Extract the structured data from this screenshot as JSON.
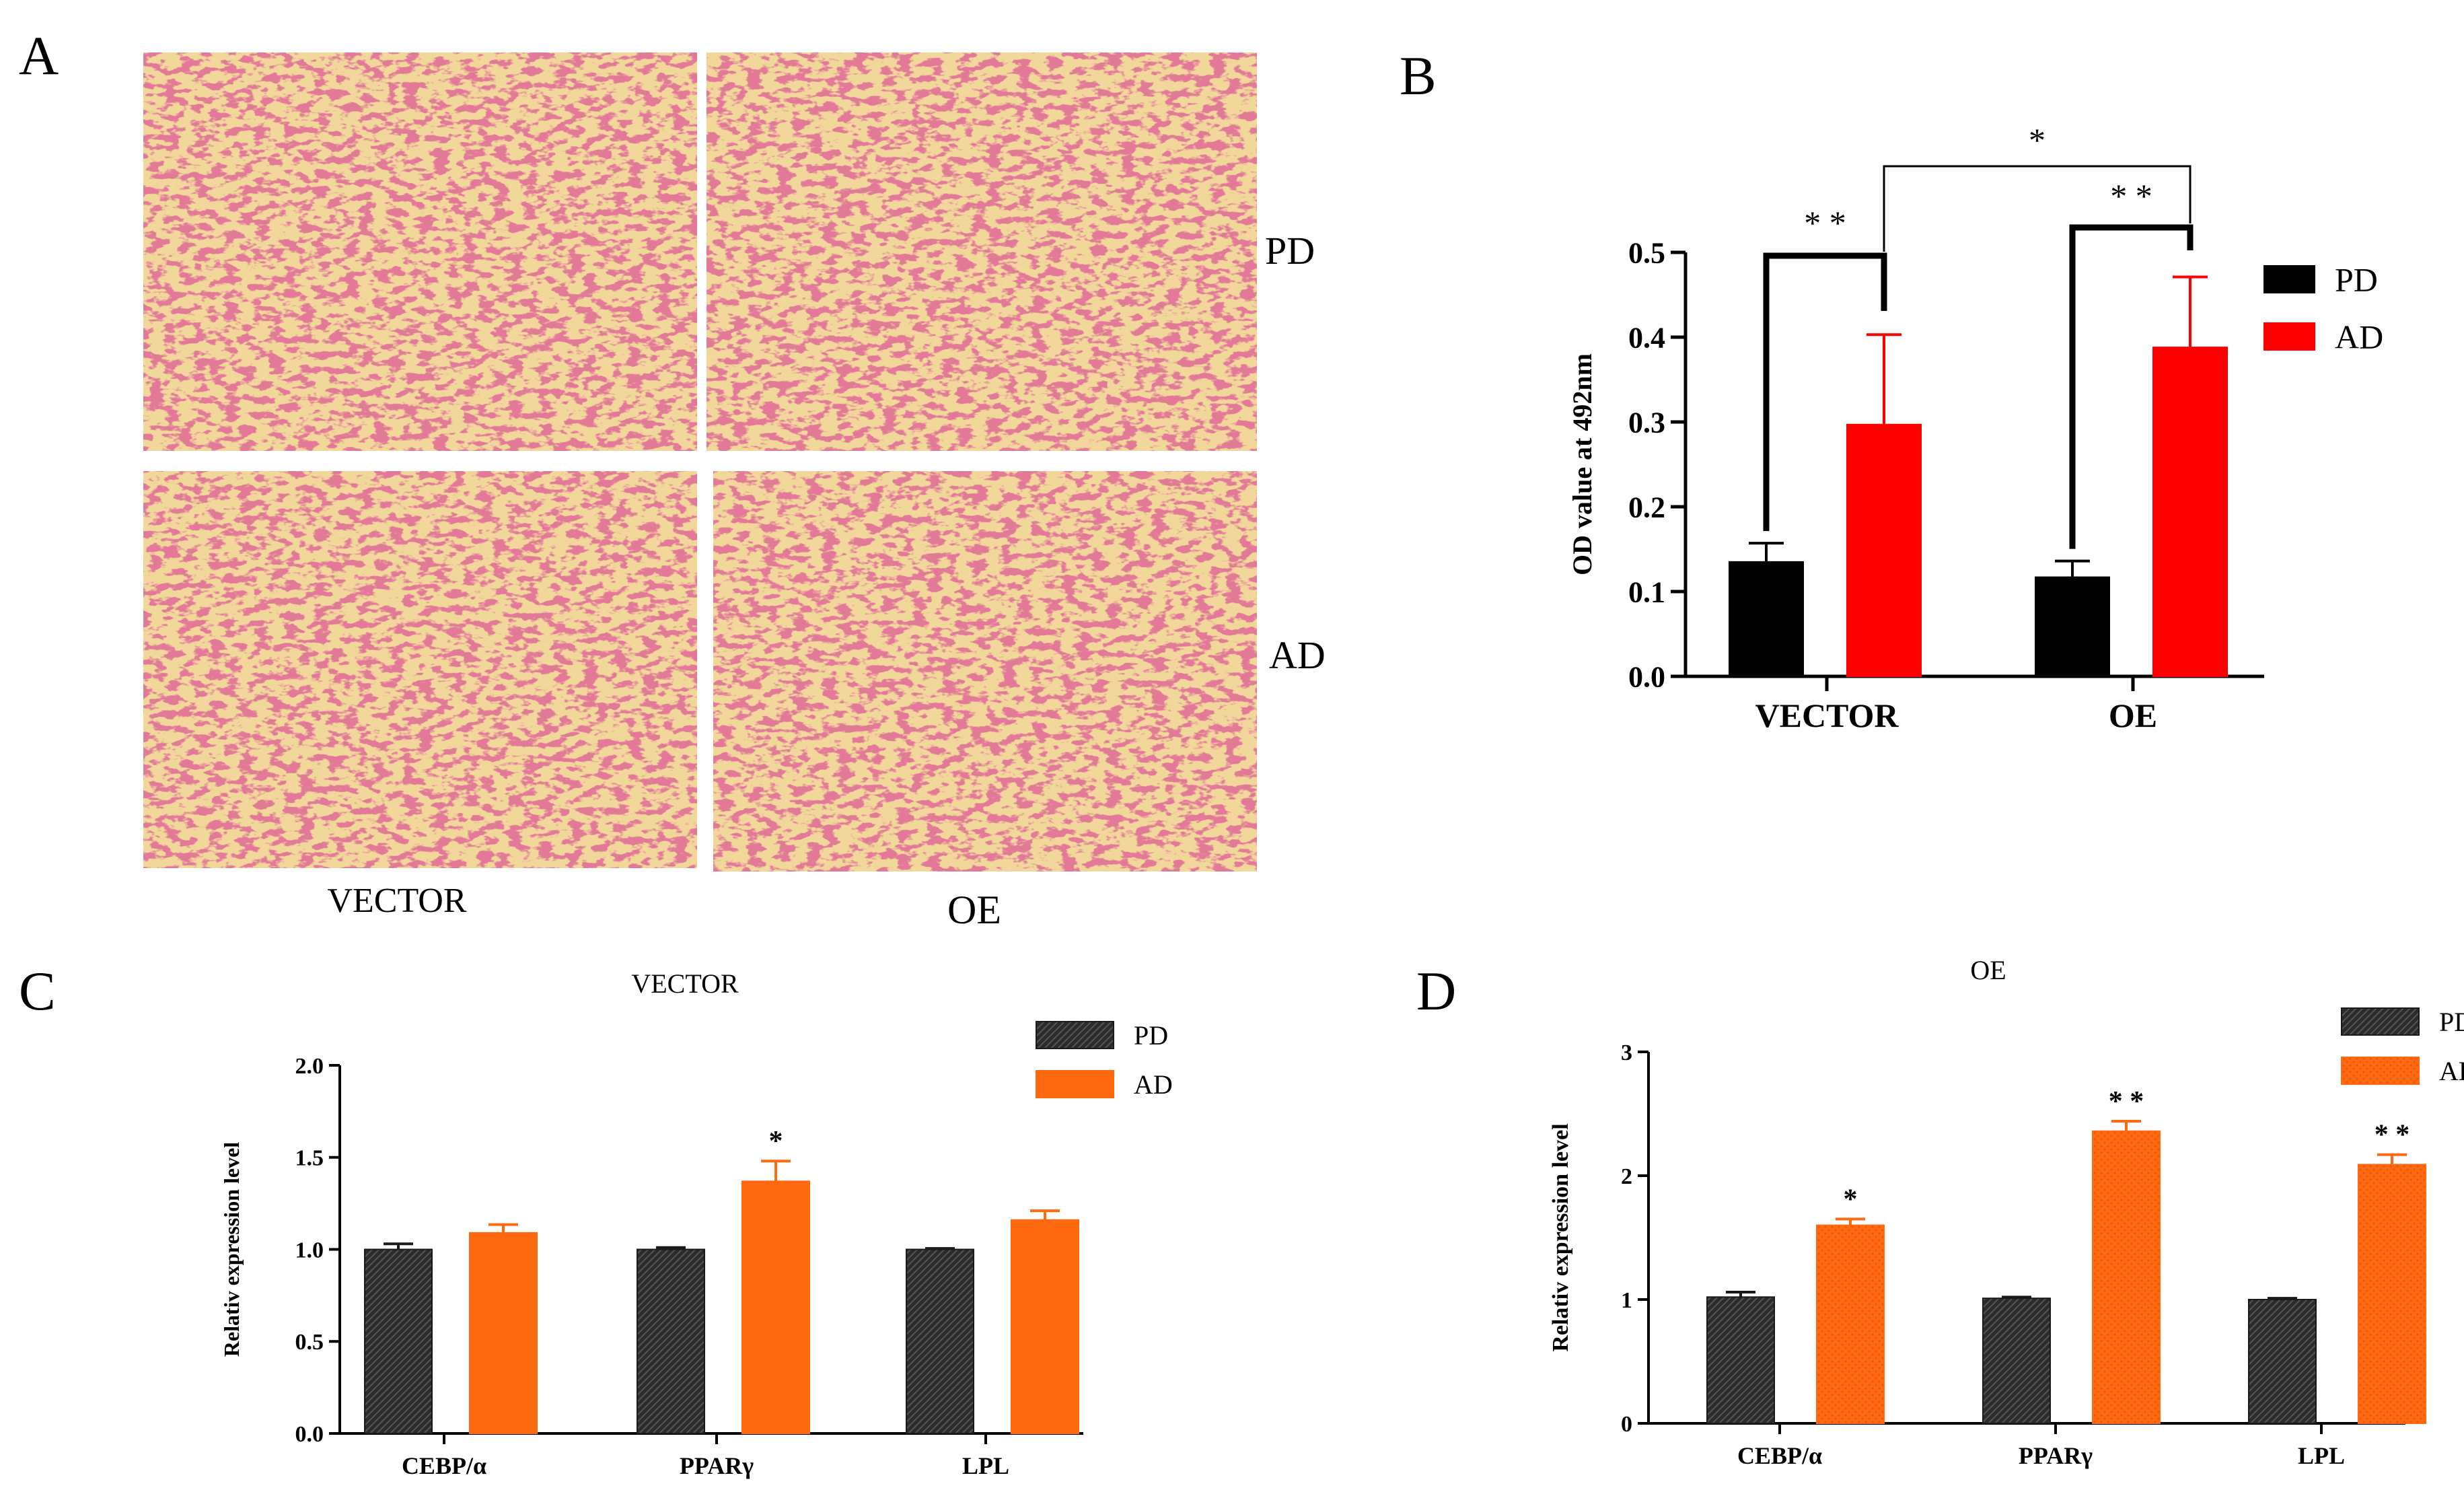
{
  "panels": {
    "A": {
      "label": "A",
      "row_labels": [
        "PD",
        "AD"
      ],
      "column_labels": [
        "VECTOR",
        "OE"
      ],
      "colors": {
        "background": "#f2d79b",
        "cells": "#c0304e"
      }
    },
    "B": {
      "label": "B"
    },
    "C": {
      "label": "C"
    },
    "D": {
      "label": "D"
    }
  },
  "chart_data": [
    {
      "id": "B",
      "type": "bar",
      "title": "",
      "categories": [
        "VECTOR",
        "OE"
      ],
      "series": [
        {
          "name": "PD",
          "values": [
            0.135,
            0.117
          ],
          "errors": [
            0.022,
            0.019
          ],
          "color": "#000000"
        },
        {
          "name": "AD",
          "values": [
            0.297,
            0.388
          ],
          "errors": [
            0.106,
            0.083
          ],
          "color": "#ff0000"
        }
      ],
      "ylabel": "OD value at 492nm",
      "xlabel": "",
      "ylim": [
        0,
        0.5
      ],
      "yticks": [
        0.0,
        0.1,
        0.2,
        0.3,
        0.4,
        0.5
      ],
      "ytick_labels": [
        "0.0",
        "0.1",
        "0.2",
        "0.3",
        "0.4",
        "0.5"
      ],
      "legend": {
        "position": "top-right",
        "entries": [
          "PD",
          "AD"
        ]
      },
      "significance": [
        {
          "label": "* *",
          "between": "VECTOR PD vs VECTOR AD"
        },
        {
          "label": "* *",
          "between": "OE PD vs OE AD"
        },
        {
          "label": "*",
          "between": "VECTOR AD vs OE AD"
        }
      ]
    },
    {
      "id": "C",
      "type": "bar",
      "title": "VECTOR",
      "categories": [
        "CEBP/α",
        "PPARγ",
        "LPL"
      ],
      "series": [
        {
          "name": "PD",
          "values": [
            1.0,
            1.0,
            1.0
          ],
          "errors": [
            0.03,
            0.01,
            0.005
          ],
          "color": "#2b2b2b"
        },
        {
          "name": "AD",
          "values": [
            1.09,
            1.37,
            1.16
          ],
          "errors": [
            0.045,
            0.11,
            0.05
          ],
          "color": "#ff6a10"
        }
      ],
      "annotations": [
        "",
        "*",
        ""
      ],
      "ylabel": "Relativ expression level",
      "xlabel": "",
      "ylim": [
        0,
        2.0
      ],
      "yticks": [
        0,
        0.5,
        1.0,
        1.5,
        2.0
      ],
      "ytick_labels": [
        "0.0",
        "0.5",
        "1.0",
        "1.5",
        "2.0"
      ],
      "legend": {
        "position": "top-right",
        "entries": [
          "PD",
          "AD"
        ]
      }
    },
    {
      "id": "D",
      "type": "bar",
      "title": "OE",
      "categories": [
        "CEBP/α",
        "PPARγ",
        "LPL"
      ],
      "series": [
        {
          "name": "PD",
          "values": [
            1.02,
            1.01,
            1.0
          ],
          "errors": [
            0.04,
            0.01,
            0.01
          ],
          "color": "#2b2b2b"
        },
        {
          "name": "AD",
          "values": [
            1.6,
            2.36,
            2.09
          ],
          "errors": [
            0.05,
            0.08,
            0.08
          ],
          "color": "#ff6a10"
        }
      ],
      "annotations": [
        "*",
        "* *",
        "* *"
      ],
      "ylabel": "Relativ expression level",
      "xlabel": "",
      "ylim": [
        0,
        3
      ],
      "yticks": [
        0,
        1,
        2,
        3
      ],
      "ytick_labels": [
        "0",
        "1",
        "2",
        "3"
      ],
      "legend": {
        "position": "top-right",
        "entries": [
          "PD",
          "AD"
        ]
      }
    }
  ]
}
